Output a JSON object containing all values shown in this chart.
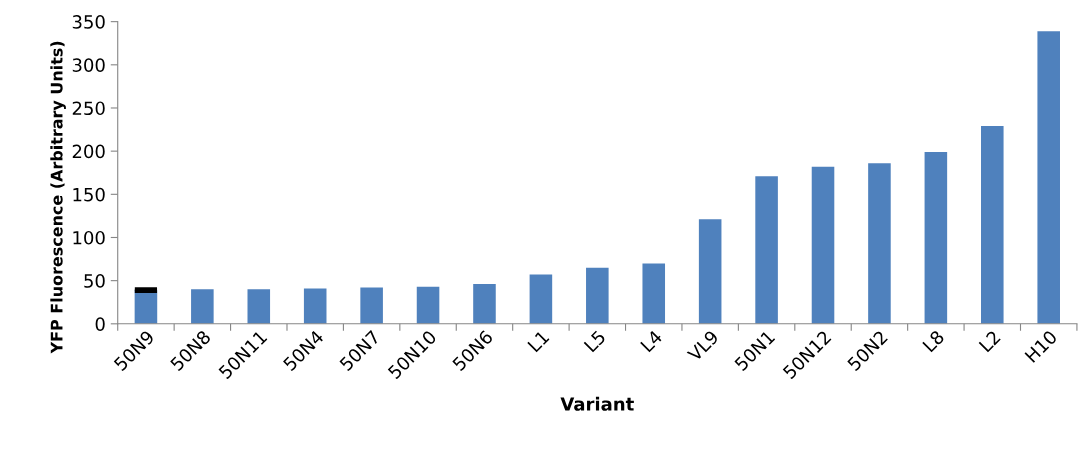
{
  "chart_data": {
    "type": "bar",
    "xlabel": "Variant",
    "ylabel": "YFP Fluorescence (Arbitrary Units)",
    "categories": [
      "50N9",
      "50N8",
      "50N11",
      "50N4",
      "50N7",
      "50N10",
      "50N6",
      "L1",
      "L5",
      "L4",
      "VL9",
      "50N1",
      "50N12",
      "50N2",
      "L8",
      "L2",
      "H10"
    ],
    "values": [
      39,
      40,
      40,
      41,
      42,
      43,
      46,
      57,
      65,
      70,
      121,
      171,
      182,
      186,
      199,
      229,
      339
    ],
    "errors": [
      1.4,
      null,
      null,
      null,
      null,
      null,
      null,
      null,
      null,
      null,
      null,
      null,
      null,
      null,
      null,
      null,
      null
    ],
    "color": "#4f81bd",
    "ylim": [
      0,
      350
    ],
    "yticks": [
      0,
      50,
      100,
      150,
      200,
      250,
      300,
      350
    ],
    "grid": false,
    "legend": false
  }
}
